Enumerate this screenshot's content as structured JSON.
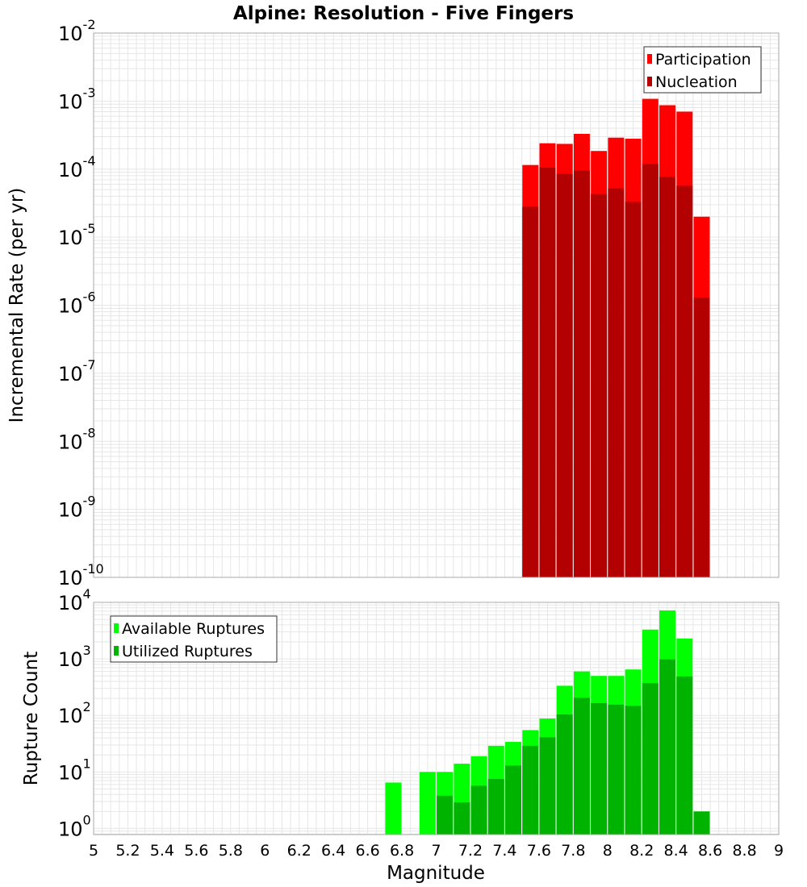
{
  "chart_title": "Alpine: Resolution - Five Fingers",
  "xlabel": "Magnitude",
  "x_ticks": [
    5,
    5.2,
    5.4,
    5.6,
    5.8,
    6,
    6.2,
    6.4,
    6.6,
    6.8,
    7,
    7.2,
    7.4,
    7.6,
    7.8,
    8,
    8.2,
    8.4,
    8.6,
    8.8,
    9
  ],
  "x_tick_labels": [
    "5",
    "5.2",
    "5.4",
    "5.6",
    "5.8",
    "6",
    "6.2",
    "6.4",
    "6.6",
    "6.8",
    "7",
    "7.2",
    "7.4",
    "7.6",
    "7.8",
    "8",
    "8.2",
    "8.4",
    "8.6",
    "8.8",
    "9"
  ],
  "colors": {
    "participation": "#ff0000",
    "nucleation": "#b30000",
    "available": "#00ff00",
    "utilized": "#00b300",
    "grid": "#e6e6e6",
    "frame": "#aaaaaa"
  },
  "chart_data": [
    {
      "type": "bar",
      "ylabel": "Incremental Rate (per yr)",
      "y_scale": "log",
      "ylim": [
        1e-10,
        0.01
      ],
      "y_tick_exponents": [
        -10,
        -9,
        -8,
        -7,
        -6,
        -5,
        -4,
        -3,
        -2
      ],
      "xlim": [
        5,
        9
      ],
      "grid": true,
      "legend_position": "top-right",
      "series": [
        {
          "name": "Participation",
          "color": "#ff0000",
          "x": [
            7.55,
            7.65,
            7.75,
            7.85,
            7.95,
            8.05,
            8.15,
            8.25,
            8.35,
            8.45,
            8.55
          ],
          "values": [
            0.000115,
            0.00024,
            0.000235,
            0.00033,
            0.000185,
            0.00029,
            0.00028,
            0.00108,
            0.00087,
            0.0007,
            2e-05
          ]
        },
        {
          "name": "Nucleation",
          "color": "#b30000",
          "x": [
            7.55,
            7.65,
            7.75,
            7.85,
            7.95,
            8.05,
            8.15,
            8.25,
            8.35,
            8.45,
            8.55
          ],
          "values": [
            2.8e-05,
            0.000105,
            8.5e-05,
            9.5e-05,
            4.3e-05,
            5.2e-05,
            3.3e-05,
            0.00012,
            7.7e-05,
            5.7e-05,
            1.3e-06
          ]
        }
      ]
    },
    {
      "type": "bar",
      "ylabel": "Rupture Count",
      "y_scale": "log",
      "ylim": [
        0.78,
        10000
      ],
      "y_tick_exponents": [
        0,
        1,
        2,
        3,
        4
      ],
      "xlim": [
        5,
        9
      ],
      "grid": true,
      "legend_position": "top-left",
      "series": [
        {
          "name": "Available Ruptures",
          "color": "#00ff00",
          "x": [
            6.75,
            6.95,
            7.05,
            7.15,
            7.25,
            7.35,
            7.45,
            7.55,
            7.65,
            7.75,
            7.85,
            7.95,
            8.05,
            8.15,
            8.25,
            8.35,
            8.45,
            8.55
          ],
          "values": [
            6.5,
            10,
            10,
            14,
            19,
            29,
            34,
            55,
            88,
            335,
            600,
            500,
            500,
            650,
            3300,
            7200,
            2300,
            2
          ]
        },
        {
          "name": "Utilized Ruptures",
          "color": "#00b300",
          "x": [
            7.05,
            7.15,
            7.25,
            7.35,
            7.45,
            7.55,
            7.65,
            7.75,
            7.85,
            7.95,
            8.05,
            8.15,
            8.25,
            8.35,
            8.45,
            8.55
          ],
          "values": [
            3.8,
            2.9,
            5.7,
            7.5,
            13,
            29,
            41,
            104,
            205,
            165,
            155,
            148,
            375,
            980,
            490,
            2
          ]
        }
      ]
    }
  ]
}
